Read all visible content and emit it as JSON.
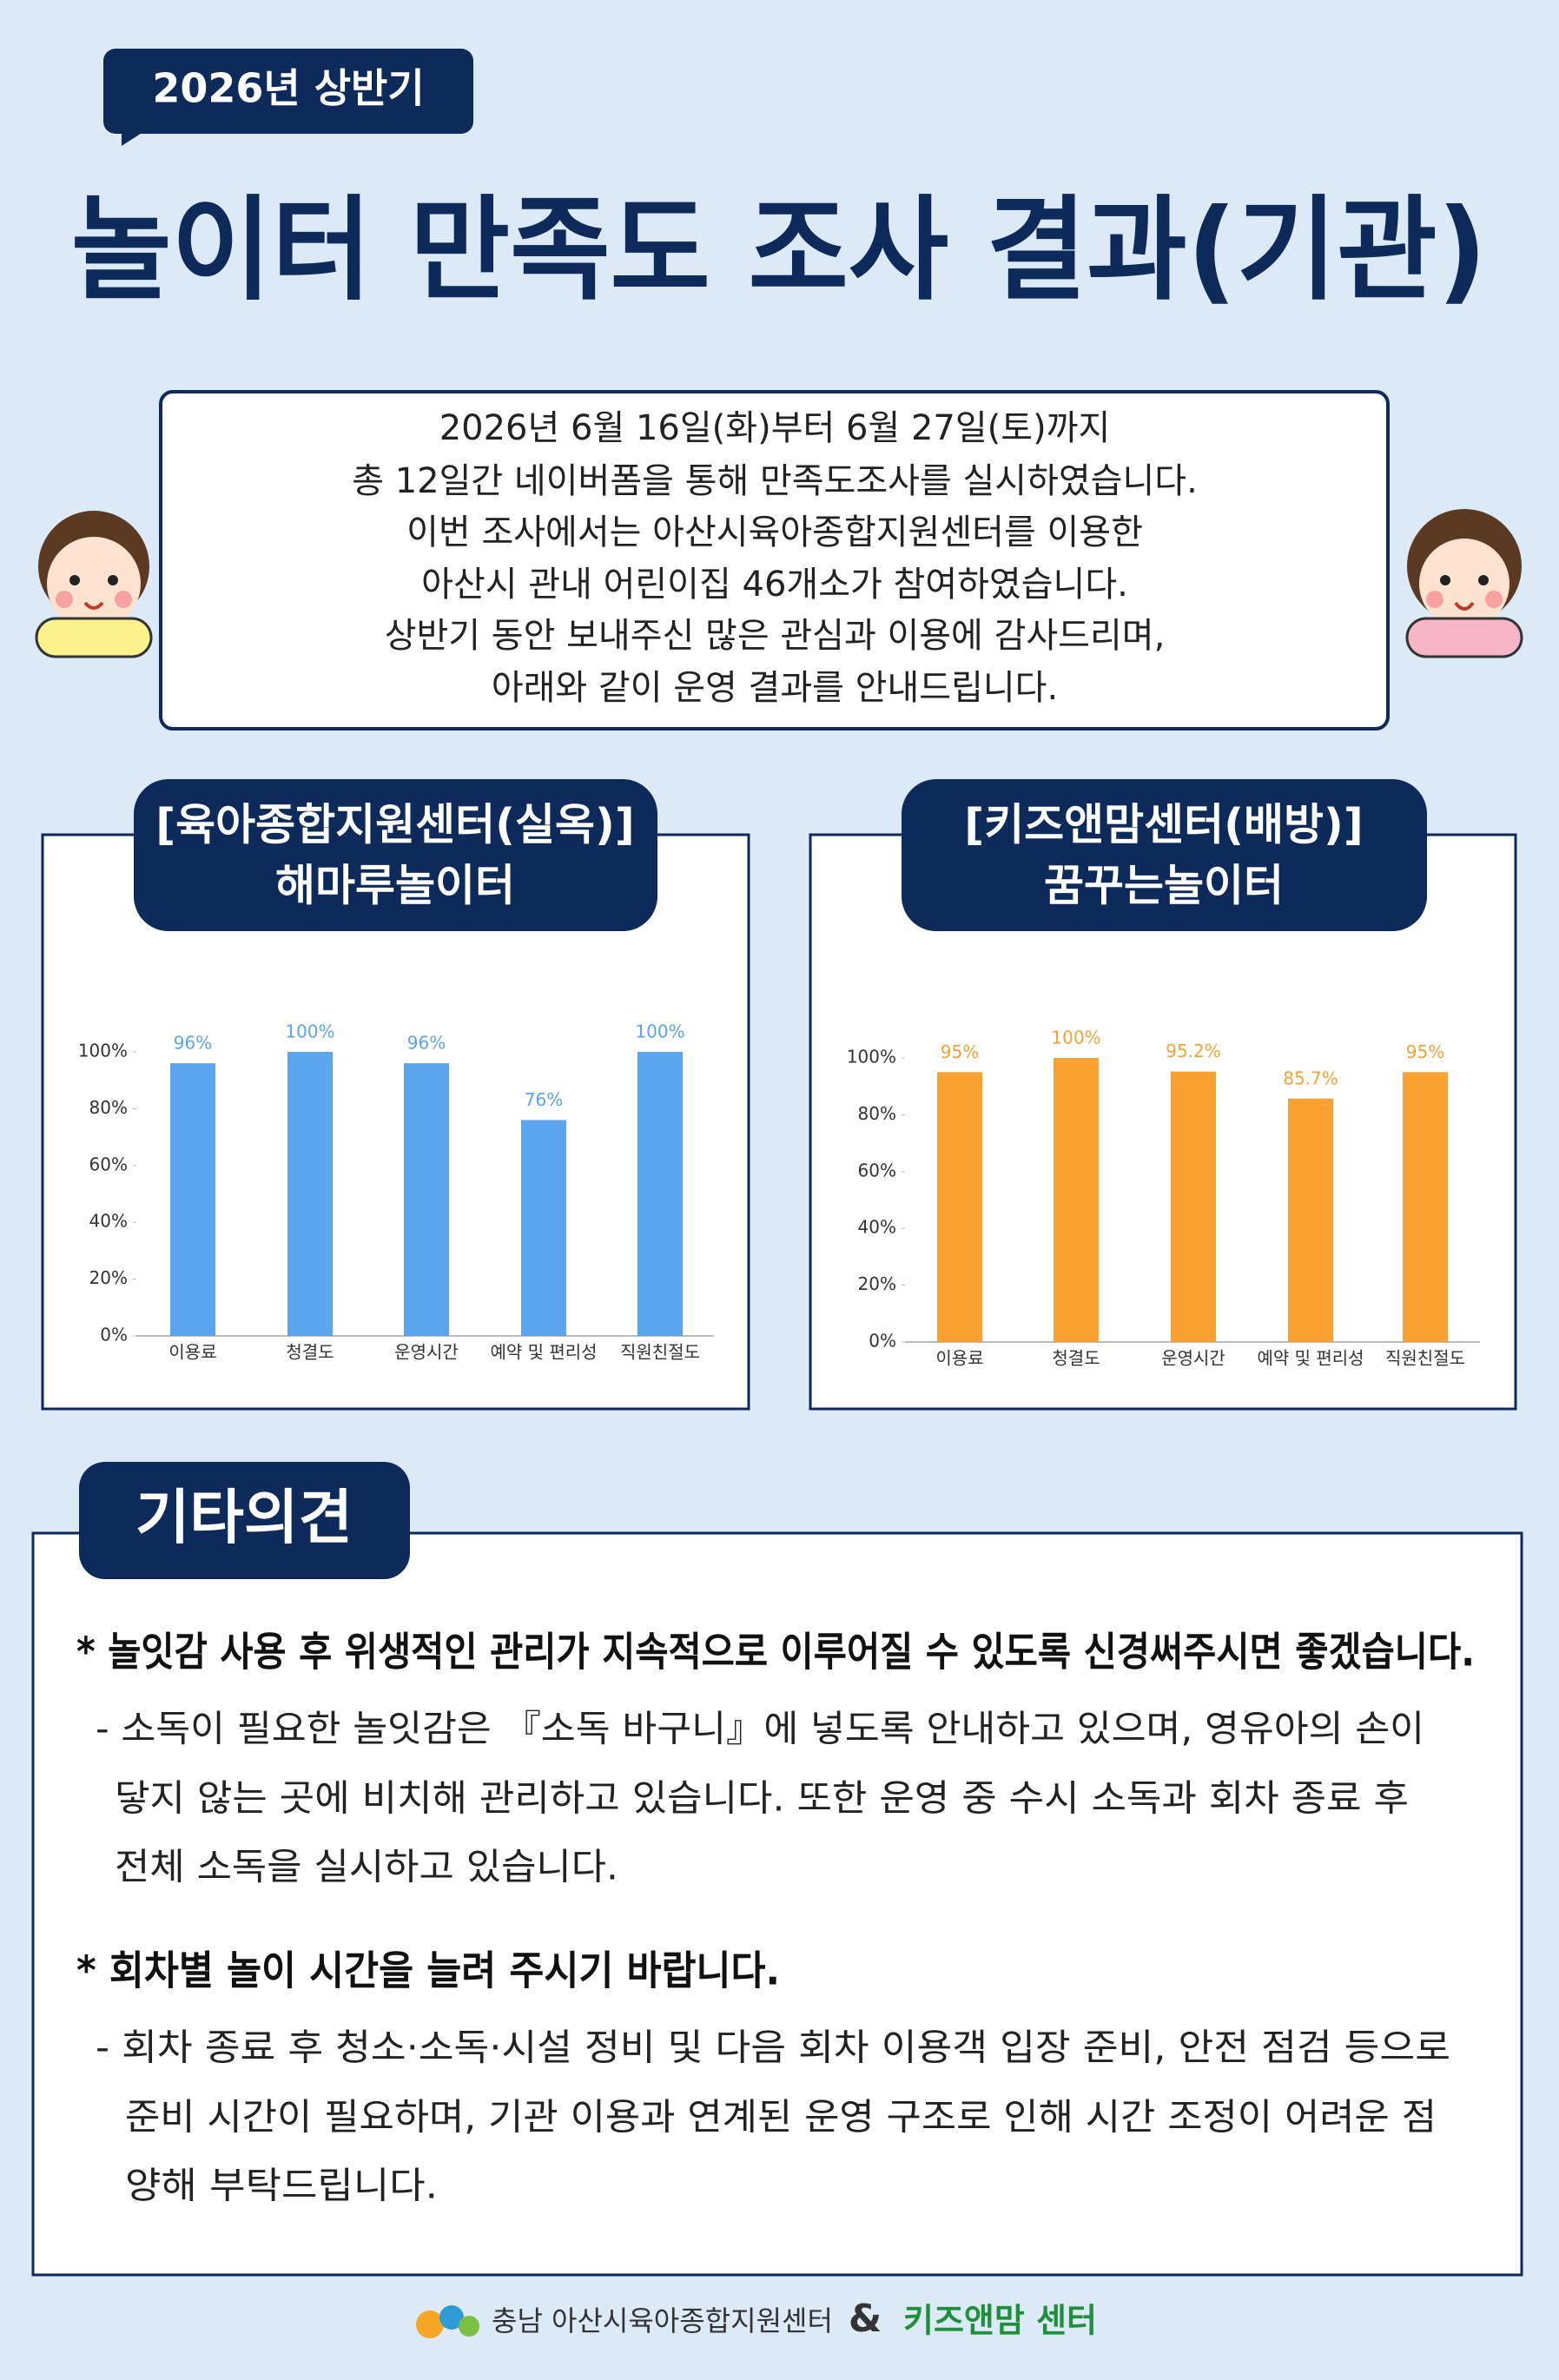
{
  "badge": "2026년 상반기",
  "title": "놀이터 만족도 조사 결과(기관)",
  "intro": [
    "2026년 6월 16일(화)부터 6월 27일(토)까지",
    "총 12일간 네이버폼을 통해 만족도조사를 실시하였습니다.",
    "이번 조사에서는 아산시육아종합지원센터를 이용한",
    "아산시 관내 어린이집 46개소가 참여하였습니다.",
    "상반기 동안 보내주신 많은 관심과 이용에 감사드리며,",
    "아래와 같이 운영 결과를 안내드립니다."
  ],
  "chart_data": [
    {
      "type": "bar",
      "title": "[육아종합지원센터(실옥)]",
      "subtitle": "해마루놀이터",
      "categories": [
        "이용료",
        "청결도",
        "운영시간",
        "예약 및 편리성",
        "직원친절도"
      ],
      "values": [
        96,
        100,
        96,
        76,
        100
      ],
      "value_labels": [
        "96%",
        "100%",
        "96%",
        "76%",
        "100%"
      ],
      "color": "#5aa5ee",
      "ylim": [
        0,
        100
      ],
      "yticks": [
        {
          "value": 0,
          "label": "0%"
        },
        {
          "value": 20,
          "label": "20%"
        },
        {
          "value": 40,
          "label": "40%"
        },
        {
          "value": 60,
          "label": "60%"
        },
        {
          "value": 80,
          "label": "80%"
        },
        {
          "value": 100,
          "label": "100%"
        }
      ]
    },
    {
      "type": "bar",
      "title": "[키즈앤맘센터(배방)]",
      "subtitle": "꿈꾸는놀이터",
      "categories": [
        "이용료",
        "청결도",
        "운영시간",
        "예약 및 편리성",
        "직원친절도"
      ],
      "values": [
        95,
        100,
        95.2,
        85.7,
        95
      ],
      "value_labels": [
        "95%",
        "100%",
        "95.2%",
        "85.7%",
        "95%"
      ],
      "color": "#f8a130",
      "ylim": [
        0,
        100
      ],
      "yticks": [
        {
          "value": 0,
          "label": "0%"
        },
        {
          "value": 20,
          "label": "20%"
        },
        {
          "value": 40,
          "label": "40%"
        },
        {
          "value": 60,
          "label": "60%"
        },
        {
          "value": 80,
          "label": "80%"
        },
        {
          "value": 100,
          "label": "100%"
        }
      ]
    }
  ],
  "opinions": {
    "title": "기타의견",
    "items": [
      {
        "heading": "* 놀잇감 사용 후 위생적인 관리가 지속적으로 이루어질 수 있도록 신경써주시면 좋겠습니다.",
        "lines": [
          "- 소독이 필요한 놀잇감은 『소독 바구니』에 넣도록 안내하고 있으며, 영유아의 손이",
          "닿지 않는 곳에 비치해 관리하고 있습니다. 또한 운영 중 수시 소독과 회차 종료 후",
          "전체 소독을 실시하고 있습니다."
        ]
      },
      {
        "heading": "* 회차별 놀이 시간을 늘려 주시기 바랍니다.",
        "lines": [
          "- 회차 종료 후 청소·소독·시설 정비 및 다음 회차 이용객 입장 준비, 안전 점검 등으로",
          "준비 시간이 필요하며, 기관 이용과 연계된 운영 구조로 인해 시간 조정이 어려운 점",
          "양해 부탁드립니다."
        ]
      }
    ]
  },
  "footer": {
    "org1": "충남 아산시육아종합지원센터",
    "amp": "&",
    "org2": "키즈앤맘 센터"
  }
}
